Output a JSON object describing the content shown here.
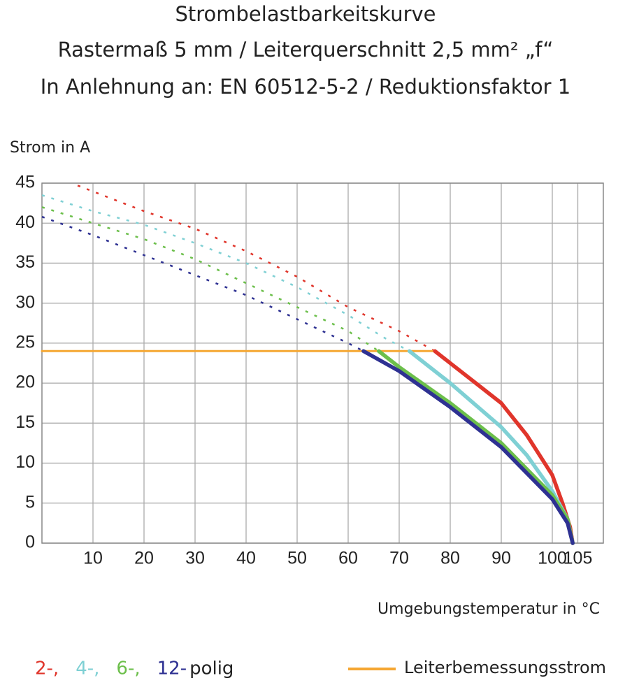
{
  "chart_data": {
    "type": "line",
    "title": "Strombelastbarkeitskurve",
    "subtitle": "Rastermaß 5 mm / Leiterquerschnitt 2,5 mm² „f“",
    "subtitle2": "In Anlehnung an: EN 60512-5-2 / Reduktionsfaktor 1",
    "y_label": "Strom in A",
    "x_label": "Umgebungstemperatur in °C",
    "legend_suffix": "polig",
    "xlim": [
      0,
      110
    ],
    "ylim": [
      0,
      45
    ],
    "xticks": [
      10,
      20,
      30,
      40,
      50,
      60,
      70,
      80,
      90,
      100,
      105
    ],
    "yticks": [
      0,
      5,
      10,
      15,
      20,
      25,
      30,
      35,
      40,
      45
    ],
    "grid": true,
    "series": [
      {
        "name": "2-,",
        "color": "#e0352b",
        "dashed": {
          "x": [
            7,
            20,
            30,
            40,
            50,
            60,
            70,
            77
          ],
          "values": [
            44.7,
            41.5,
            39.3,
            36.5,
            33.3,
            29.5,
            26.5,
            24
          ]
        },
        "solid": {
          "x": [
            77,
            80,
            85,
            90,
            95,
            100,
            102,
            103.5,
            104
          ],
          "values": [
            24,
            22.5,
            20,
            17.5,
            13.5,
            8.5,
            5,
            2,
            0
          ]
        }
      },
      {
        "name": "4-,",
        "color": "#7fd0d4",
        "dashed": {
          "x": [
            0,
            10,
            20,
            30,
            40,
            50,
            60,
            67,
            72
          ],
          "values": [
            43.5,
            41.5,
            39.8,
            37.5,
            35,
            32,
            28.5,
            25.7,
            24
          ]
        },
        "solid": {
          "x": [
            72,
            80,
            90,
            95,
            100,
            103,
            104
          ],
          "values": [
            24,
            20,
            14.5,
            11,
            6.5,
            3,
            0
          ]
        }
      },
      {
        "name": "6-,",
        "color": "#6cbf4b",
        "dashed": {
          "x": [
            0,
            10,
            20,
            30,
            40,
            50,
            60,
            66
          ],
          "values": [
            42,
            40,
            38,
            35.5,
            32.5,
            29.5,
            26.5,
            24
          ]
        },
        "solid": {
          "x": [
            66,
            70,
            80,
            90,
            100,
            103,
            104
          ],
          "values": [
            24,
            22,
            17.5,
            12.5,
            6,
            3,
            0
          ]
        }
      },
      {
        "name": "12-",
        "color": "#2e3192",
        "dashed": {
          "x": [
            0,
            10,
            20,
            30,
            40,
            50,
            60,
            63
          ],
          "values": [
            40.8,
            38.5,
            36,
            33.5,
            31,
            28,
            25,
            24
          ]
        },
        "solid": {
          "x": [
            63,
            70,
            80,
            90,
            100,
            103,
            104
          ],
          "values": [
            24,
            21.5,
            17,
            12,
            5.5,
            2.5,
            0
          ]
        }
      }
    ],
    "rated_current": {
      "name": "Leiterbemessungsstrom",
      "color": "#f5a733",
      "x": [
        0,
        77
      ],
      "values": [
        24,
        24
      ]
    }
  }
}
